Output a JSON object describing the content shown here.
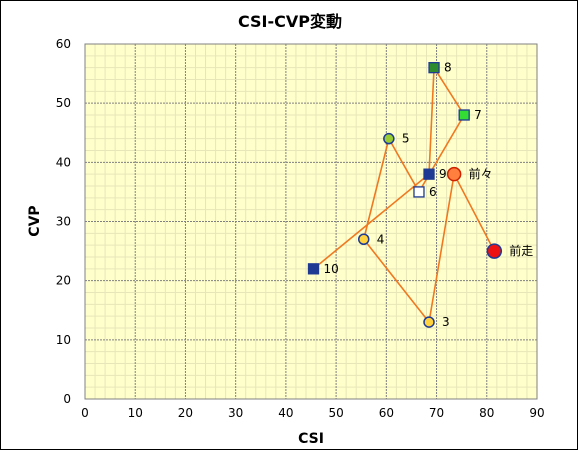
{
  "chart_data": {
    "type": "scatter",
    "title": "CSI-CVP変動",
    "xlabel": "CSI",
    "ylabel": "CVP",
    "xlim": [
      0,
      90
    ],
    "ylim": [
      0,
      60
    ],
    "xticks": [
      "0",
      "10",
      "20",
      "30",
      "40",
      "50",
      "60",
      "70",
      "80",
      "90"
    ],
    "yticks": [
      "0",
      "10",
      "20",
      "30",
      "40",
      "50",
      "60"
    ],
    "grid": true,
    "colors": {
      "plot_bg": "#ffffcc",
      "major_grid": "#808080",
      "minor_grid": "#e6e6b8",
      "line": "#f07820"
    },
    "points": [
      {
        "label": "10",
        "x": 45.5,
        "y": 22,
        "marker": "square",
        "fill": "#1f3a93",
        "stroke": "#1f3a93"
      },
      {
        "label": "9",
        "x": 68.5,
        "y": 38,
        "marker": "square",
        "fill": "#1f3a93",
        "stroke": "#1f3a93"
      },
      {
        "label": "8",
        "x": 69.5,
        "y": 56,
        "marker": "square",
        "fill": "#2e8b2e",
        "stroke": "#1f3a93"
      },
      {
        "label": "7",
        "x": 75.5,
        "y": 48,
        "marker": "square",
        "fill": "#33dd33",
        "stroke": "#1f3a93"
      },
      {
        "label": "6",
        "x": 66.5,
        "y": 35,
        "marker": "square",
        "fill": "#ffffff",
        "stroke": "#1f3a93"
      },
      {
        "label": "5",
        "x": 60.5,
        "y": 44,
        "marker": "circle",
        "fill": "#9acd32",
        "stroke": "#1f3a93"
      },
      {
        "label": "4",
        "x": 55.5,
        "y": 27,
        "marker": "circle",
        "fill": "#ffd23f",
        "stroke": "#1f3a93"
      },
      {
        "label": "3",
        "x": 68.5,
        "y": 13,
        "marker": "circle",
        "fill": "#ffd23f",
        "stroke": "#1f3a93"
      },
      {
        "label": "前々",
        "x": 73.5,
        "y": 38,
        "marker": "circle-lg",
        "fill": "#ff7f3f",
        "stroke": "#cc2200"
      },
      {
        "label": "前走",
        "x": 81.5,
        "y": 25,
        "marker": "circle-xl",
        "fill": "#ee1111",
        "stroke": "#1f3a93"
      }
    ],
    "path_order": [
      "10",
      "9",
      "8",
      "7",
      "6",
      "5",
      "4",
      "3",
      "前々",
      "前走"
    ]
  }
}
